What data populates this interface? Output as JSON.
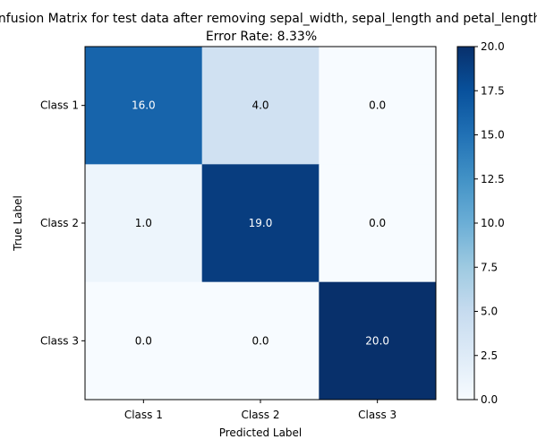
{
  "chart_data": {
    "type": "heatmap",
    "title": "Confusion Matrix for test data after removing sepal_width, sepal_length and petal_length",
    "subtitle": "Error Rate: 8.33%",
    "xlabel": "Predicted Label",
    "ylabel": "True Label",
    "x_categories": [
      "Class 1",
      "Class 2",
      "Class 3"
    ],
    "y_categories": [
      "Class 1",
      "Class 2",
      "Class 3"
    ],
    "values": [
      [
        16.0,
        4.0,
        0.0
      ],
      [
        1.0,
        19.0,
        0.0
      ],
      [
        0.0,
        0.0,
        20.0
      ]
    ],
    "value_labels": [
      [
        "16.0",
        "4.0",
        "0.0"
      ],
      [
        "1.0",
        "19.0",
        "0.0"
      ],
      [
        "0.0",
        "0.0",
        "20.0"
      ]
    ],
    "colormap": "Blues",
    "vmin": 0,
    "vmax": 20,
    "colorbar_ticks": [
      0.0,
      2.5,
      5.0,
      7.5,
      10.0,
      12.5,
      15.0,
      17.5,
      20.0
    ],
    "colorbar_tick_labels": [
      "0.0",
      "2.5",
      "5.0",
      "7.5",
      "10.0",
      "12.5",
      "15.0",
      "17.5",
      "20.0"
    ],
    "grid": false
  }
}
